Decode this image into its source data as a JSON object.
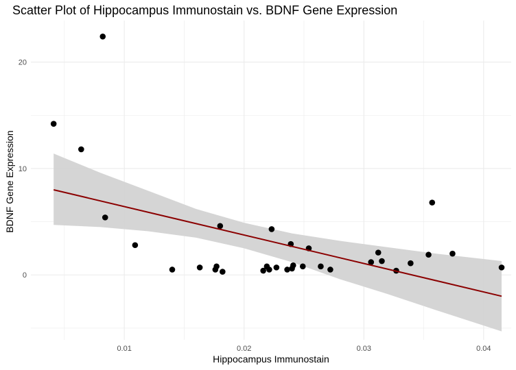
{
  "chart_data": {
    "type": "scatter",
    "title": "Scatter Plot of Hippocampus Immunostain vs. BDNF Gene Expression",
    "xlabel": "Hippocampus Immunostain",
    "ylabel": "BDNF Gene Expression",
    "xlim": [
      0.0022,
      0.0423
    ],
    "ylim": [
      -6.1,
      23.9
    ],
    "x_ticks": [
      {
        "value": 0.01,
        "label": "0.01"
      },
      {
        "value": 0.02,
        "label": "0.02"
      },
      {
        "value": 0.03,
        "label": "0.03"
      },
      {
        "value": 0.04,
        "label": "0.04"
      }
    ],
    "y_ticks": [
      {
        "value": 0,
        "label": "0"
      },
      {
        "value": 10,
        "label": "10"
      },
      {
        "value": 20,
        "label": "20"
      }
    ],
    "grid": true,
    "points": [
      {
        "x": 0.0041,
        "y": 14.2
      },
      {
        "x": 0.0064,
        "y": 11.8
      },
      {
        "x": 0.0082,
        "y": 22.4
      },
      {
        "x": 0.0084,
        "y": 5.4
      },
      {
        "x": 0.0109,
        "y": 2.8
      },
      {
        "x": 0.014,
        "y": 0.5
      },
      {
        "x": 0.0163,
        "y": 0.7
      },
      {
        "x": 0.0176,
        "y": 0.5
      },
      {
        "x": 0.0177,
        "y": 0.8
      },
      {
        "x": 0.018,
        "y": 4.6
      },
      {
        "x": 0.0182,
        "y": 0.3
      },
      {
        "x": 0.0216,
        "y": 0.4
      },
      {
        "x": 0.0219,
        "y": 0.8
      },
      {
        "x": 0.0221,
        "y": 0.5
      },
      {
        "x": 0.0223,
        "y": 4.3
      },
      {
        "x": 0.0227,
        "y": 0.7
      },
      {
        "x": 0.0236,
        "y": 0.5
      },
      {
        "x": 0.0239,
        "y": 2.9
      },
      {
        "x": 0.024,
        "y": 0.6
      },
      {
        "x": 0.0241,
        "y": 0.9
      },
      {
        "x": 0.0249,
        "y": 0.8
      },
      {
        "x": 0.0254,
        "y": 2.5
      },
      {
        "x": 0.0264,
        "y": 0.8
      },
      {
        "x": 0.0272,
        "y": 0.5
      },
      {
        "x": 0.0306,
        "y": 1.2
      },
      {
        "x": 0.0312,
        "y": 2.1
      },
      {
        "x": 0.0315,
        "y": 1.3
      },
      {
        "x": 0.0327,
        "y": 0.4
      },
      {
        "x": 0.0339,
        "y": 1.1
      },
      {
        "x": 0.0354,
        "y": 1.9
      },
      {
        "x": 0.0357,
        "y": 6.8
      },
      {
        "x": 0.0374,
        "y": 2.0
      },
      {
        "x": 0.0415,
        "y": 0.7
      }
    ],
    "trend_line": {
      "x": [
        0.0041,
        0.0415
      ],
      "y": [
        8.0,
        -2.0
      ]
    },
    "confidence_band": [
      {
        "x": 0.0041,
        "lower": 4.7,
        "upper": 11.4
      },
      {
        "x": 0.008,
        "lower": 4.5,
        "upper": 9.6
      },
      {
        "x": 0.012,
        "lower": 4.1,
        "upper": 7.9
      },
      {
        "x": 0.016,
        "lower": 3.5,
        "upper": 6.2
      },
      {
        "x": 0.02,
        "lower": 2.5,
        "upper": 4.9
      },
      {
        "x": 0.024,
        "lower": 1.2,
        "upper": 3.9
      },
      {
        "x": 0.028,
        "lower": -0.4,
        "upper": 3.2
      },
      {
        "x": 0.032,
        "lower": -1.8,
        "upper": 2.6
      },
      {
        "x": 0.036,
        "lower": -3.3,
        "upper": 2.0
      },
      {
        "x": 0.0415,
        "lower": -5.3,
        "upper": 1.3
      }
    ],
    "colors": {
      "points": "#000000",
      "trend": "#8b0000",
      "band": "#d3d3d3",
      "grid": "#ebebeb"
    }
  }
}
